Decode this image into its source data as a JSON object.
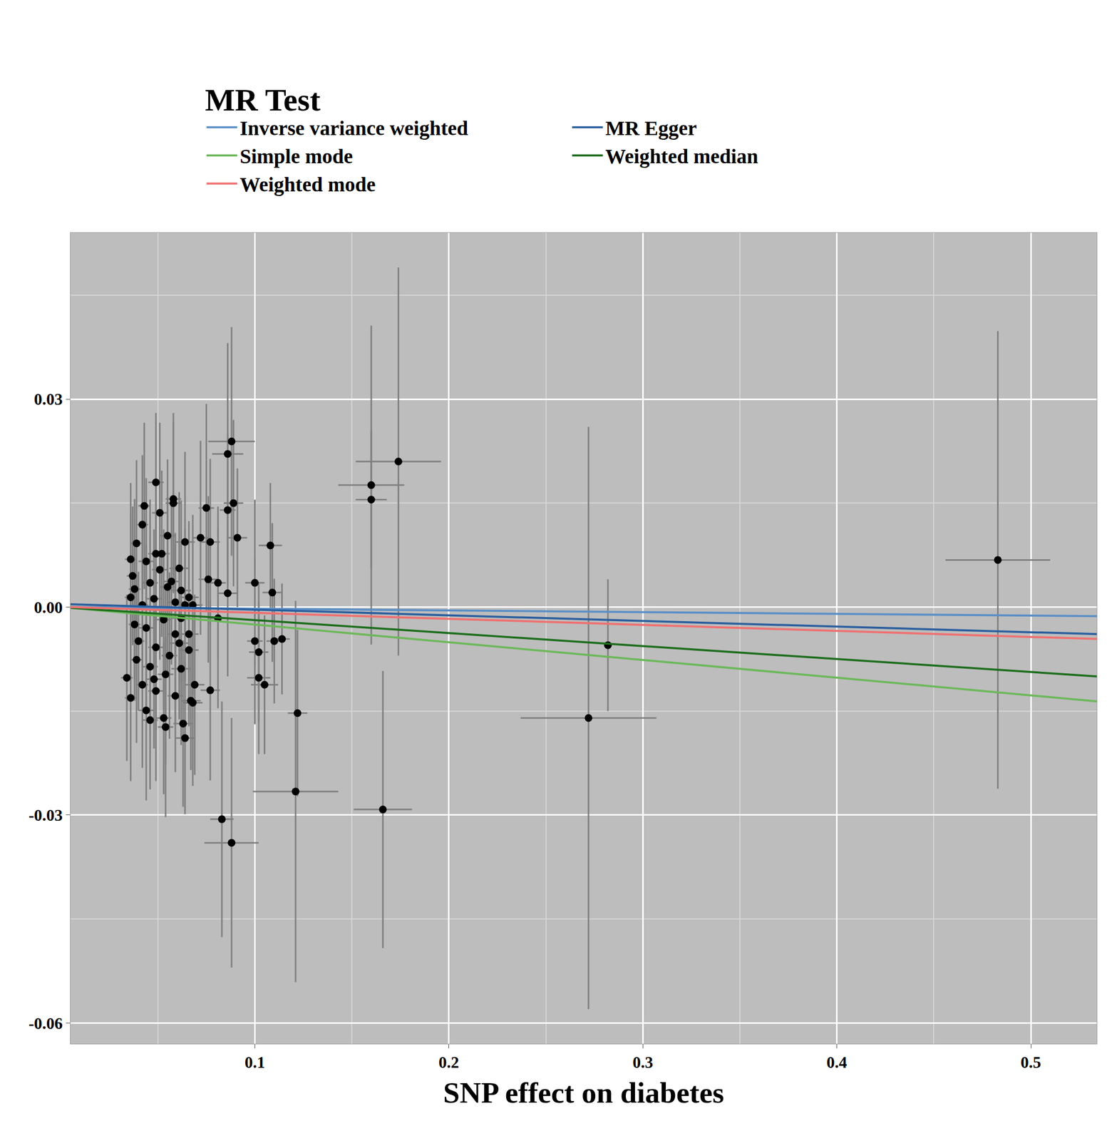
{
  "chart_data": {
    "type": "scatter",
    "x_label": "SNP effect on diabetes",
    "legend_title": "MR Test",
    "legend": "top",
    "grid": true,
    "xlim": [
      0.005,
      0.534
    ],
    "ylim": [
      -0.063,
      0.054
    ],
    "xticks": [
      0.1,
      0.2,
      0.3,
      0.4,
      0.5
    ],
    "yticks": [
      {
        "value": -0.06,
        "label": "-0.06"
      },
      {
        "value": -0.03,
        "label": "-0.03"
      },
      {
        "value": 0,
        "label": "0.00"
      },
      {
        "value": 0.03,
        "label": "0.03"
      }
    ],
    "points": {
      "color": "#000000",
      "marker": "circle",
      "x": [
        0.483,
        0.282,
        0.272,
        0.174,
        0.16,
        0.16,
        0.166,
        0.121,
        0.122,
        0.088,
        0.086,
        0.083,
        0.088,
        0.091,
        0.089,
        0.086,
        0.086,
        0.1,
        0.108,
        0.109,
        0.1,
        0.102,
        0.102,
        0.105,
        0.11,
        0.114,
        0.077,
        0.075,
        0.076,
        0.081,
        0.081,
        0.072,
        0.077,
        0.049,
        0.058,
        0.043,
        0.051,
        0.055,
        0.039,
        0.049,
        0.064,
        0.036,
        0.044,
        0.051,
        0.061,
        0.037,
        0.046,
        0.055,
        0.066,
        0.036,
        0.059,
        0.068,
        0.038,
        0.044,
        0.053,
        0.062,
        0.04,
        0.049,
        0.059,
        0.066,
        0.039,
        0.046,
        0.054,
        0.062,
        0.042,
        0.049,
        0.059,
        0.067,
        0.036,
        0.044,
        0.053,
        0.063,
        0.046,
        0.054,
        0.064,
        0.068,
        0.038,
        0.042,
        0.048,
        0.057,
        0.062,
        0.061,
        0.056,
        0.048,
        0.069,
        0.066,
        0.052,
        0.058,
        0.064,
        0.042,
        0.034
      ],
      "values": [
        0.0068,
        -0.0055,
        -0.016,
        0.021,
        0.0176,
        0.0155,
        -0.0292,
        -0.0266,
        -0.0153,
        0.0239,
        0.0221,
        -0.0306,
        -0.034,
        0.01,
        0.015,
        0.014,
        0.002,
        0.0035,
        0.0089,
        0.0021,
        -0.0049,
        -0.0065,
        -0.0102,
        -0.0112,
        -0.0049,
        -0.0046,
        -0.012,
        0.0143,
        0.004,
        0.0035,
        -0.0016,
        0.01,
        0.0094,
        0.018,
        0.0156,
        0.0146,
        0.0136,
        0.0103,
        0.0092,
        0.0077,
        0.0094,
        0.0069,
        0.0066,
        0.0054,
        0.0056,
        0.0045,
        0.0035,
        0.0029,
        0.0014,
        0.0014,
        0.0007,
        0.0003,
        -0.0025,
        -0.003,
        -0.0018,
        -0.0016,
        -0.0049,
        -0.0058,
        -0.0039,
        -0.0062,
        -0.0076,
        -0.0086,
        -0.0097,
        -0.0089,
        -0.0112,
        -0.0121,
        -0.0128,
        -0.0135,
        -0.0131,
        -0.0149,
        -0.016,
        -0.0168,
        -0.0163,
        -0.0173,
        -0.0189,
        -0.0138,
        0.0026,
        0.0003,
        0.0012,
        0.0037,
        0.0024,
        -0.0052,
        -0.007,
        -0.0104,
        -0.0112,
        -0.0039,
        0.0077,
        0.015,
        0.0003,
        0.0119,
        -0.0102
      ],
      "x_error": [
        0.027,
        0.002,
        0.035,
        0.022,
        0.017,
        0.008,
        0.015,
        0.022,
        0.005,
        0.012,
        0.008,
        0.006,
        0.014,
        0.005,
        0.005,
        0.004,
        0.005,
        0.005,
        0.006,
        0.005,
        0.004,
        0.005,
        0.006,
        0.007,
        0.004,
        0.004,
        0.005,
        0.004,
        0.005,
        0.004,
        0.005,
        0.004,
        0.005,
        0.004,
        0.004,
        0.003,
        0.004,
        0.004,
        0.003,
        0.004,
        0.005,
        0.003,
        0.004,
        0.004,
        0.005,
        0.003,
        0.004,
        0.004,
        0.005,
        0.003,
        0.004,
        0.005,
        0.003,
        0.004,
        0.004,
        0.005,
        0.003,
        0.004,
        0.004,
        0.005,
        0.003,
        0.004,
        0.004,
        0.005,
        0.003,
        0.004,
        0.004,
        0.005,
        0.003,
        0.004,
        0.004,
        0.005,
        0.004,
        0.004,
        0.005,
        0.005,
        0.003,
        0.003,
        0.004,
        0.004,
        0.005,
        0.005,
        0.004,
        0.004,
        0.005,
        0.005,
        0.004,
        0.004,
        0.005,
        0.003,
        0.003
      ],
      "y_error": [
        0.033,
        0.0095,
        0.042,
        0.028,
        0.023,
        0.01,
        0.02,
        0.0275,
        0.012,
        0.0165,
        0.016,
        0.017,
        0.018,
        0.01,
        0.012,
        0.011,
        0.012,
        0.012,
        0.009,
        0.01,
        0.012,
        0.01,
        0.011,
        0.01,
        0.009,
        0.008,
        0.013,
        0.015,
        0.012,
        0.011,
        0.013,
        0.014,
        0.012,
        0.01,
        0.011,
        0.012,
        0.013,
        0.011,
        0.012,
        0.01,
        0.013,
        0.011,
        0.012,
        0.013,
        0.011,
        0.01,
        0.012,
        0.013,
        0.011,
        0.012,
        0.01,
        0.013,
        0.011,
        0.012,
        0.013,
        0.011,
        0.01,
        0.012,
        0.013,
        0.011,
        0.012,
        0.01,
        0.013,
        0.011,
        0.012,
        0.013,
        0.011,
        0.01,
        0.012,
        0.013,
        0.011,
        0.012,
        0.01,
        0.013,
        0.011,
        0.012,
        0.013,
        0.011,
        0.01,
        0.012,
        0.013,
        0.011,
        0.012,
        0.01,
        0.013,
        0.011,
        0.012,
        0.013,
        0.011,
        0.01,
        0.012
      ]
    },
    "series": [
      {
        "name": "Inverse variance weighted",
        "color": "#5b8fc7",
        "line_style": "solid",
        "x": [
          0.005,
          0.534
        ],
        "values": [
          0.0,
          -0.0013
        ]
      },
      {
        "name": "MR Egger",
        "color": "#2b5f9e",
        "line_style": "solid",
        "x": [
          0.005,
          0.534
        ],
        "values": [
          0.0004,
          -0.0039
        ]
      },
      {
        "name": "Simple mode",
        "color": "#6cb85a",
        "line_style": "solid",
        "x": [
          0.005,
          0.534
        ],
        "values": [
          -0.0001,
          -0.0136
        ]
      },
      {
        "name": "Weighted median",
        "color": "#1e6e1e",
        "line_style": "solid",
        "x": [
          0.005,
          0.534
        ],
        "values": [
          -0.0001,
          -0.01
        ]
      },
      {
        "name": "Weighted mode",
        "color": "#f07070",
        "line_style": "solid",
        "x": [
          0.005,
          0.534
        ],
        "values": [
          0.0,
          -0.0046
        ]
      }
    ]
  }
}
